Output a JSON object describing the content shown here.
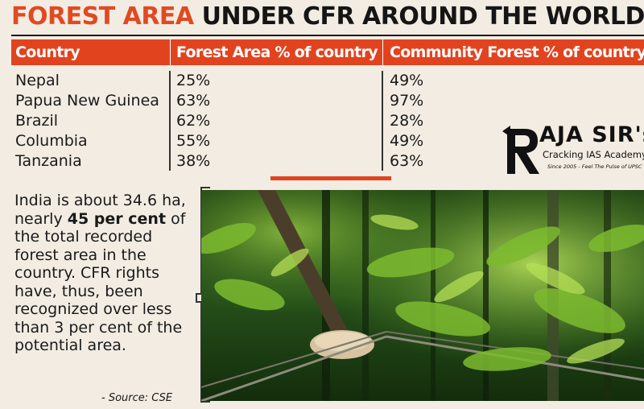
{
  "title": {
    "highlight": "FOREST AREA",
    "rest": "UNDER CFR AROUND THE WORLD"
  },
  "table": {
    "headers": [
      "Country",
      "Forest Area % of country",
      "Community Forest  % of country"
    ],
    "rows": [
      {
        "country": "Nepal",
        "forest_area": "25%",
        "community_forest": "49%"
      },
      {
        "country": "Papua New Guinea",
        "forest_area": "63%",
        "community_forest": "97%"
      },
      {
        "country": "Brazil",
        "forest_area": "62%",
        "community_forest": "28%"
      },
      {
        "country": "Columbia",
        "forest_area": "55%",
        "community_forest": "49%"
      },
      {
        "country": "Tanzania",
        "forest_area": "38%",
        "community_forest": "63%"
      }
    ]
  },
  "logo": {
    "name": "AJA SIR's",
    "subtitle": "Cracking IAS Academy",
    "tagline": "Since 2005 - Feel The Pulse of UPSC"
  },
  "body": {
    "part1": "India is about 34.6 ha, nearly ",
    "bold": "45 per cent",
    "part2": " of the total recorded forest area in the country. CFR rights have, thus, been recognized over less than 3 per cent of the potential area.",
    "source": "- Source: CSE"
  },
  "colors": {
    "accent": "#e2431f",
    "title_accent": "#e04a22",
    "forest_dark": "#0d2a0a",
    "forest_light": "#a7d84a"
  },
  "image": {
    "subject": "forest-photo"
  }
}
